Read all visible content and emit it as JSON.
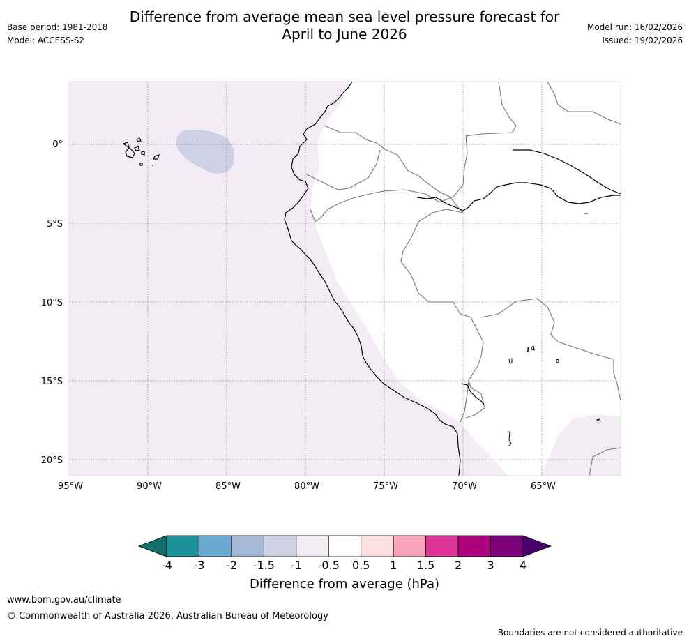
{
  "header": {
    "title_line1": "Difference from average mean sea level pressure forecast for",
    "title_line2": "April to June 2026",
    "base_period": "Base period: 1981-2018",
    "model": "Model: ACCESS-S2",
    "model_run": "Model run: 16/02/2026",
    "issued": "Issued: 19/02/2026"
  },
  "map": {
    "lat_labels": [
      "0°",
      "5°S",
      "10°S",
      "15°S",
      "20°S"
    ],
    "lon_labels": [
      "95°W",
      "90°W",
      "85°W",
      "80°W",
      "75°W",
      "70°W",
      "65°W"
    ],
    "anomaly_classes": {
      "ocean_background": "-0.5 to -1",
      "blob_off_ecuador": "-1 to -1.5",
      "land": "-0.5 to 0.5"
    }
  },
  "colorbar": {
    "title": "Difference from average (hPa)",
    "ticks": [
      "-4",
      "-3",
      "-2",
      "-1.5",
      "-1",
      "-0.5",
      "0.5",
      "1",
      "1.5",
      "2",
      "3",
      "4"
    ],
    "colors": [
      "#137068",
      "#1b9299",
      "#6aaad1",
      "#a7b8d6",
      "#ced1e4",
      "#f4ecf5",
      "#ffffff",
      "#fde0e0",
      "#f9a3bd",
      "#dd3497",
      "#ae017e",
      "#7a0177",
      "#49006a"
    ]
  },
  "footer": {
    "url": "www.bom.gov.au/climate",
    "copyright": "© Commonwealth of Australia 2026, Australian Bureau of Meteorology",
    "note": "Boundaries are not considered authoritative"
  }
}
